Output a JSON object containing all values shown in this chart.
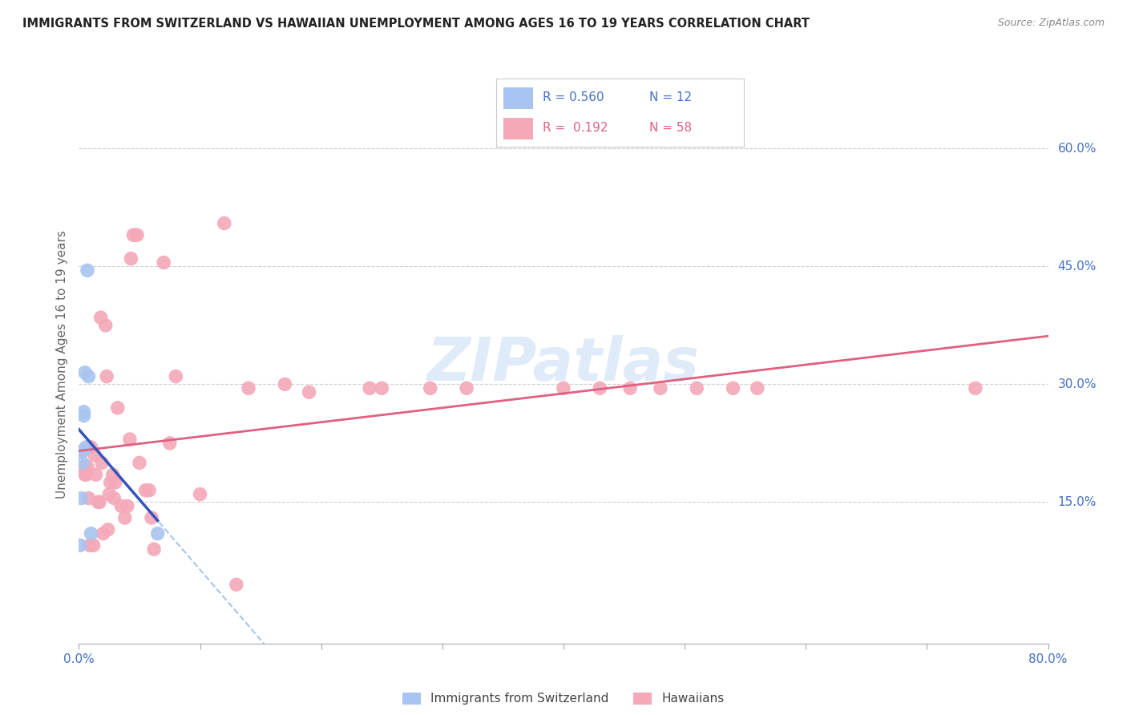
{
  "title": "IMMIGRANTS FROM SWITZERLAND VS HAWAIIAN UNEMPLOYMENT AMONG AGES 16 TO 19 YEARS CORRELATION CHART",
  "source": "Source: ZipAtlas.com",
  "ylabel": "Unemployment Among Ages 16 to 19 years",
  "xlim": [
    0.0,
    0.8
  ],
  "ylim": [
    -0.03,
    0.68
  ],
  "blue_color": "#a8c4f0",
  "pink_color": "#f4a8b8",
  "blue_line_color": "#3355bb",
  "pink_line_color": "#e06080",
  "watermark": "ZIPatlas",
  "blue_points_x": [
    0.001,
    0.002,
    0.003,
    0.003,
    0.004,
    0.004,
    0.005,
    0.006,
    0.007,
    0.008,
    0.01,
    0.065
  ],
  "blue_points_y": [
    0.095,
    0.155,
    0.215,
    0.2,
    0.26,
    0.265,
    0.315,
    0.22,
    0.445,
    0.31,
    0.11,
    0.11
  ],
  "pink_points_x": [
    0.003,
    0.004,
    0.005,
    0.006,
    0.007,
    0.008,
    0.009,
    0.01,
    0.012,
    0.013,
    0.014,
    0.016,
    0.017,
    0.018,
    0.019,
    0.02,
    0.022,
    0.023,
    0.024,
    0.025,
    0.026,
    0.028,
    0.029,
    0.03,
    0.032,
    0.035,
    0.038,
    0.04,
    0.042,
    0.043,
    0.045,
    0.048,
    0.05,
    0.055,
    0.058,
    0.06,
    0.062,
    0.07,
    0.075,
    0.08,
    0.1,
    0.12,
    0.13,
    0.14,
    0.17,
    0.19,
    0.24,
    0.25,
    0.29,
    0.32,
    0.4,
    0.43,
    0.455,
    0.48,
    0.51,
    0.54,
    0.56,
    0.74
  ],
  "pink_points_y": [
    0.215,
    0.195,
    0.185,
    0.185,
    0.195,
    0.155,
    0.095,
    0.22,
    0.095,
    0.21,
    0.185,
    0.15,
    0.15,
    0.385,
    0.2,
    0.11,
    0.375,
    0.31,
    0.115,
    0.16,
    0.175,
    0.185,
    0.155,
    0.175,
    0.27,
    0.145,
    0.13,
    0.145,
    0.23,
    0.46,
    0.49,
    0.49,
    0.2,
    0.165,
    0.165,
    0.13,
    0.09,
    0.455,
    0.225,
    0.31,
    0.16,
    0.505,
    0.045,
    0.295,
    0.3,
    0.29,
    0.295,
    0.295,
    0.295,
    0.295,
    0.295,
    0.295,
    0.295,
    0.295,
    0.295,
    0.295,
    0.295,
    0.295
  ]
}
